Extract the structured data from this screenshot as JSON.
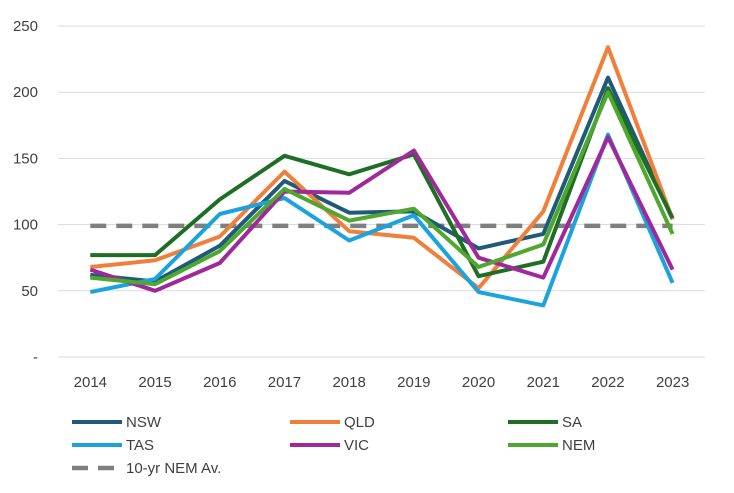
{
  "chart_data": {
    "type": "line",
    "title": "",
    "xlabel": "",
    "ylabel": "",
    "categories": [
      "2014",
      "2015",
      "2016",
      "2017",
      "2018",
      "2019",
      "2020",
      "2021",
      "2022",
      "2023"
    ],
    "ylim": [
      0,
      250
    ],
    "yticks": [
      {
        "value": 0,
        "label": "-"
      },
      {
        "value": 50,
        "label": "50"
      },
      {
        "value": 100,
        "label": "100"
      },
      {
        "value": 150,
        "label": "150"
      },
      {
        "value": 200,
        "label": "200"
      },
      {
        "value": 250,
        "label": "250"
      }
    ],
    "grid": true,
    "legend_position": "bottom",
    "series": [
      {
        "name": "NSW",
        "color": "#1f5a7a",
        "dashed": false,
        "values": [
          62,
          57,
          84,
          133,
          109,
          110,
          82,
          93,
          211,
          104
        ]
      },
      {
        "name": "QLD",
        "color": "#f07f3c",
        "dashed": false,
        "values": [
          68,
          73,
          91,
          140,
          95,
          90,
          52,
          110,
          234,
          104
        ]
      },
      {
        "name": "SA",
        "color": "#1e6e26",
        "dashed": false,
        "values": [
          77,
          77,
          119,
          152,
          138,
          153,
          61,
          72,
          203,
          105
        ]
      },
      {
        "name": "TAS",
        "color": "#1aa3dc",
        "dashed": false,
        "values": [
          49,
          59,
          108,
          120,
          88,
          107,
          49,
          39,
          168,
          56
        ]
      },
      {
        "name": "VIC",
        "color": "#a0289a",
        "dashed": false,
        "values": [
          66,
          50,
          71,
          125,
          124,
          156,
          75,
          60,
          166,
          66
        ]
      },
      {
        "name": "NEM",
        "color": "#4ea72e",
        "dashed": false,
        "values": [
          60,
          55,
          80,
          127,
          103,
          112,
          68,
          85,
          200,
          93
        ]
      },
      {
        "name": "10-yr NEM Av.",
        "color": "#7f7f7f",
        "dashed": true,
        "values": [
          99,
          99,
          99,
          99,
          99,
          99,
          99,
          99,
          99,
          99
        ]
      }
    ]
  }
}
